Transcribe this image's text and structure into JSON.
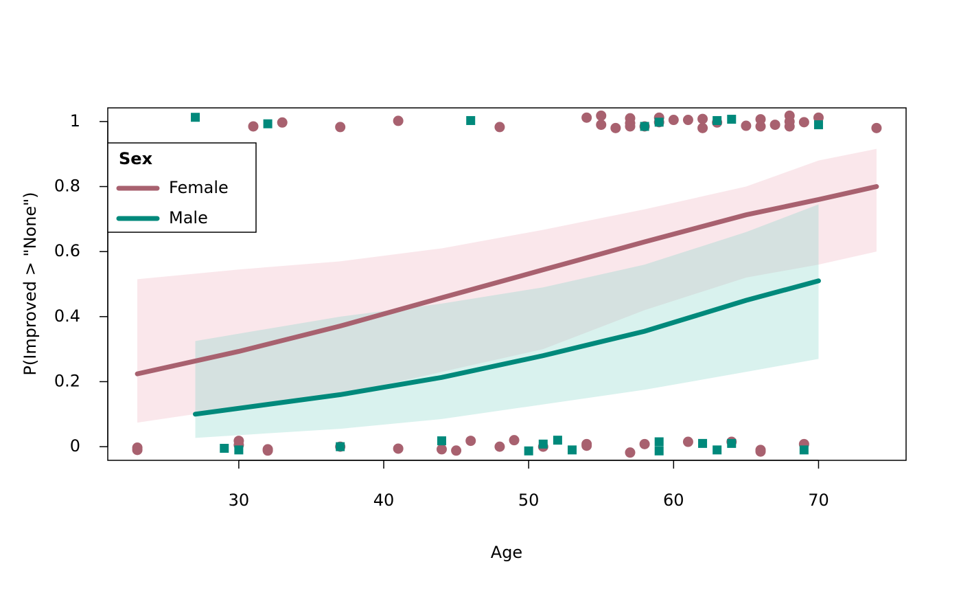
{
  "chart_data": {
    "type": "line",
    "x_label": "Age",
    "y_label": "P(Improved > \"None\")",
    "xlim": [
      20.96,
      76.04
    ],
    "ylim": [
      -0.042,
      1.042
    ],
    "xticks": [
      30,
      40,
      50,
      60,
      70
    ],
    "yticks": [
      0,
      0.2,
      0.4,
      0.6,
      0.8,
      1
    ],
    "legend_title": "Sex",
    "legend_position": "topleft",
    "series": [
      {
        "name": "Female",
        "color": "#a8616f",
        "band_color": "#f0b0bc",
        "marker": "circle",
        "x": [
          23,
          30,
          37,
          44,
          51,
          58,
          65,
          70,
          74
        ],
        "values": [
          0.224,
          0.293,
          0.371,
          0.458,
          0.544,
          0.63,
          0.713,
          0.76,
          0.8
        ],
        "lower": [
          0.074,
          0.12,
          0.16,
          0.23,
          0.3,
          0.42,
          0.52,
          0.56,
          0.6
        ],
        "upper": [
          0.515,
          0.545,
          0.57,
          0.61,
          0.667,
          0.73,
          0.8,
          0.88,
          0.916
        ],
        "points_x": [
          31,
          33,
          37,
          41,
          48,
          54,
          55,
          55,
          56,
          57,
          57,
          57,
          58,
          59,
          59,
          60,
          61,
          62,
          62,
          63,
          65,
          66,
          66,
          67,
          68,
          68,
          68,
          69,
          70,
          74,
          23,
          23,
          30,
          30,
          32,
          32,
          37,
          41,
          44,
          45,
          46,
          48,
          49,
          51,
          54,
          54,
          57,
          58,
          61,
          64,
          66,
          66,
          69
        ],
        "points_y": [
          0.985,
          0.997,
          0.983,
          1.002,
          0.983,
          1.012,
          1.018,
          0.99,
          0.98,
          1.01,
          0.995,
          0.985,
          0.985,
          1.012,
          0.998,
          1.005,
          1.005,
          1.008,
          0.98,
          0.997,
          0.987,
          1.007,
          0.985,
          0.99,
          1.018,
          1.0,
          0.985,
          0.998,
          1.012,
          0.98,
          -0.003,
          -0.01,
          0.018,
          0.005,
          -0.008,
          -0.012,
          0.0,
          -0.006,
          -0.008,
          -0.012,
          0.018,
          0.0,
          0.02,
          0.0,
          0.008,
          0.003,
          -0.018,
          0.008,
          0.015,
          0.015,
          -0.01,
          -0.015,
          0.008
        ]
      },
      {
        "name": "Male",
        "color": "#00897b",
        "band_color": "#80d4c6",
        "marker": "square",
        "x": [
          27,
          37,
          44,
          51,
          58,
          65,
          70
        ],
        "values": [
          0.1,
          0.16,
          0.213,
          0.28,
          0.355,
          0.45,
          0.51
        ],
        "lower": [
          0.027,
          0.055,
          0.085,
          0.13,
          0.175,
          0.23,
          0.27
        ],
        "upper": [
          0.325,
          0.4,
          0.44,
          0.49,
          0.56,
          0.66,
          0.745
        ],
        "points_x": [
          27,
          32,
          46,
          58,
          59,
          63,
          64,
          70,
          29,
          30,
          37,
          44,
          50,
          51,
          52,
          53,
          59,
          59,
          62,
          63,
          64,
          69
        ],
        "points_y": [
          1.013,
          0.993,
          1.003,
          0.985,
          0.998,
          1.003,
          1.007,
          0.99,
          -0.005,
          -0.01,
          0.0,
          0.018,
          -0.013,
          0.008,
          0.02,
          -0.01,
          0.015,
          -0.013,
          0.01,
          -0.01,
          0.01,
          -0.01
        ]
      }
    ]
  }
}
